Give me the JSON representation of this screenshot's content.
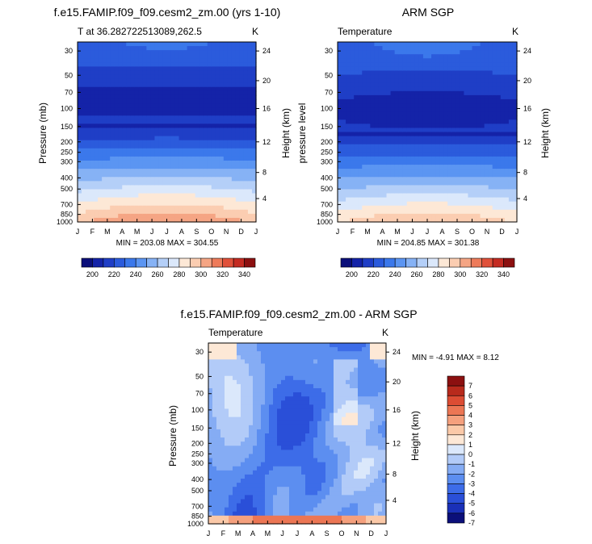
{
  "panels": [
    {
      "title": "f.e15.FAMIP.f09_f09.cesm2_zm.00 (yrs 1-10)",
      "left_label": "T at 36.282722513089,262.5",
      "right_label": "K",
      "ylabel_left": "Pressure (mb)",
      "ylabel_right": "Height (km)",
      "stats": "MIN = 203.08 MAX = 304.55"
    },
    {
      "title": "ARM SGP",
      "left_label": "Temperature",
      "right_label": "K",
      "ylabel_left": "pressure level",
      "ylabel_right": "Height (km)",
      "stats": "MIN = 204.85 MAX = 301.38"
    },
    {
      "title": "f.e15.FAMIP.f09_f09.cesm2_zm.00 - ARM SGP",
      "left_label": "Temperature",
      "right_label": "K",
      "ylabel_left": "Pressure (mb)",
      "ylabel_right": "Height (km)",
      "stats": "MIN =  -4.91 MAX =   8.12"
    }
  ],
  "chart_data": [
    {
      "type": "heatmap",
      "title": "f.e15.FAMIP.f09_f09.cesm2_zm.00 (yrs 1-10)",
      "xlabel": "",
      "ylabel": "Pressure (mb)",
      "y2label": "Height (km)",
      "x": [
        "J",
        "F",
        "M",
        "A",
        "M",
        "J",
        "J",
        "A",
        "S",
        "O",
        "N",
        "D",
        "J"
      ],
      "pressure_ticks": [
        30,
        50,
        70,
        100,
        150,
        200,
        250,
        300,
        400,
        500,
        700,
        850,
        1000
      ],
      "height_ticks": [
        4,
        8,
        12,
        16,
        20,
        24
      ],
      "units": "K",
      "min": 203.08,
      "max": 304.55,
      "colorbar_labels": [
        "200",
        "220",
        "240",
        "260",
        "280",
        "300",
        "320",
        "340"
      ]
    },
    {
      "type": "heatmap",
      "title": "ARM SGP",
      "xlabel": "",
      "ylabel": "pressure level",
      "y2label": "Height (km)",
      "x": [
        "J",
        "F",
        "M",
        "A",
        "M",
        "J",
        "J",
        "A",
        "S",
        "O",
        "N",
        "D",
        "J"
      ],
      "pressure_ticks": [
        30,
        50,
        70,
        100,
        150,
        200,
        250,
        300,
        400,
        500,
        700,
        850,
        1000
      ],
      "height_ticks": [
        4,
        8,
        12,
        16,
        20,
        24
      ],
      "units": "K",
      "min": 204.85,
      "max": 301.38,
      "colorbar_labels": [
        "200",
        "220",
        "240",
        "260",
        "280",
        "300",
        "320",
        "340"
      ]
    },
    {
      "type": "heatmap",
      "title": "f.e15.FAMIP.f09_f09.cesm2_zm.00 - ARM SGP",
      "xlabel": "",
      "ylabel": "Pressure (mb)",
      "y2label": "Height (km)",
      "x": [
        "J",
        "F",
        "M",
        "A",
        "M",
        "J",
        "J",
        "A",
        "S",
        "O",
        "N",
        "D",
        "J"
      ],
      "pressure_ticks": [
        30,
        50,
        70,
        100,
        150,
        200,
        250,
        300,
        400,
        500,
        700,
        850,
        1000
      ],
      "height_ticks": [
        4,
        8,
        12,
        16,
        20,
        24
      ],
      "units": "K",
      "min": -4.91,
      "max": 8.12,
      "colorbar_labels": [
        "7",
        "6",
        "5",
        "4",
        "3",
        "2",
        "1",
        "0",
        "-1",
        "-2",
        "-3",
        "-4",
        "-5",
        "-6",
        "-7"
      ]
    }
  ],
  "palettes": {
    "temperature": [
      "#0b0f7a",
      "#1423a8",
      "#1f3ec6",
      "#2b5bdc",
      "#3b78eb",
      "#5b95f2",
      "#86b2f5",
      "#b4cff8",
      "#dbe8fb",
      "#fde8d6",
      "#fbcdb1",
      "#f5a584",
      "#ee7b5a",
      "#e0513a",
      "#c42b22",
      "#8c1010"
    ],
    "difference": [
      "#0b0f7a",
      "#1a30b8",
      "#2a4fd8",
      "#3d6ce8",
      "#5c8ef0",
      "#85acf4",
      "#b2cbf8",
      "#dbe8fb",
      "#fde8d6",
      "#fbc9a8",
      "#f5a07d",
      "#ec7654",
      "#dc4c33",
      "#b82a1c",
      "#8c1010"
    ]
  }
}
